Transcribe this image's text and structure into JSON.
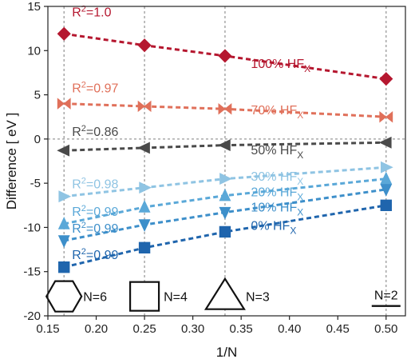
{
  "chart_data": {
    "type": "line",
    "title": "",
    "xlabel": "1/N",
    "ylabel": "Difference [ eV ]",
    "xlim": [
      0.15,
      0.52
    ],
    "ylim": [
      -20,
      15
    ],
    "xticks": [
      "0.15",
      "0.20",
      "0.25",
      "0.30",
      "0.35",
      "0.40",
      "0.45",
      "0.50"
    ],
    "yticks": [
      "-20",
      "-15",
      "-10",
      "-5",
      "0",
      "5",
      "10",
      "15"
    ],
    "grid": {
      "horizontal": false,
      "vertical": true,
      "vertical_at": [
        0.1667,
        0.25,
        0.3333,
        0.5
      ]
    },
    "zero_line": true,
    "x": [
      0.1667,
      0.25,
      0.3333,
      0.5
    ],
    "series": [
      {
        "name": "100% HF",
        "sub": "X",
        "r2": "1.0",
        "color": "#b5172f",
        "marker": "diamond",
        "values": [
          11.9,
          10.6,
          9.4,
          6.8
        ]
      },
      {
        "name": "70% HF",
        "sub": "X",
        "r2": "0.97",
        "color": "#e0705a",
        "marker": "bowtie",
        "values": [
          4.0,
          3.7,
          3.4,
          2.5
        ]
      },
      {
        "name": "50% HF",
        "sub": "X",
        "r2": "0.86",
        "color": "#4a4a4a",
        "marker": "tri-left",
        "values": [
          -1.3,
          -1.0,
          -0.7,
          -0.4
        ]
      },
      {
        "name": "30% HF",
        "sub": "X",
        "r2": "0.98",
        "color": "#8fc4e3",
        "marker": "tri-right",
        "values": [
          -6.5,
          -5.5,
          -4.5,
          -3.2
        ]
      },
      {
        "name": "20% HF",
        "sub": "X",
        "r2": "0.99",
        "color": "#5aa8d8",
        "marker": "tri-up",
        "values": [
          -9.6,
          -7.7,
          -6.4,
          -4.5
        ]
      },
      {
        "name": "10% HF",
        "sub": "X",
        "r2": "0.99",
        "color": "#3d8fca",
        "marker": "tri-down",
        "values": [
          -11.5,
          -9.7,
          -8.3,
          -5.7
        ]
      },
      {
        "name": "0% HF",
        "sub": "X",
        "r2": "0.99",
        "color": "#1f65ad",
        "marker": "square",
        "values": [
          -14.5,
          -12.3,
          -10.5,
          -7.5
        ]
      }
    ],
    "shape_legend": [
      {
        "label": "N=6",
        "shape": "hexagon",
        "x": 0.1667
      },
      {
        "label": "N=4",
        "shape": "square",
        "x": 0.25
      },
      {
        "label": "N=3",
        "shape": "triangle",
        "x": 0.3333
      },
      {
        "label": "N=2",
        "shape": "line",
        "x": 0.5
      }
    ]
  }
}
